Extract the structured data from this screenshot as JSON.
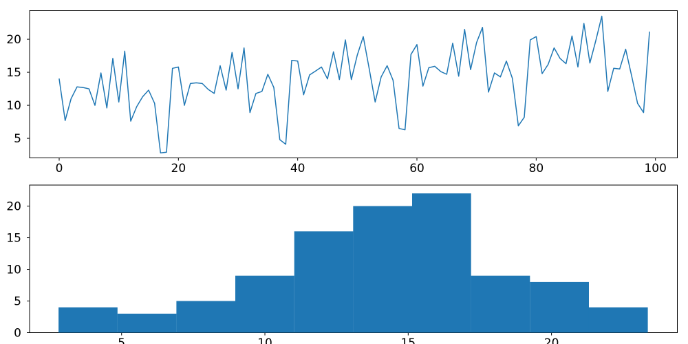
{
  "figure": {
    "background": "#ffffff",
    "series_color": "#1f77b4",
    "axis_color": "#000000",
    "text_color": "#000000"
  },
  "chart_data": [
    {
      "id": "top-line-plot",
      "type": "line",
      "title": "",
      "xlabel": "",
      "ylabel": "",
      "legend_position": "none",
      "grid": false,
      "x_start": 0,
      "x_step": 1,
      "n_points": 100,
      "y": [
        14.0,
        7.7,
        11.0,
        12.8,
        12.7,
        12.5,
        10.0,
        14.9,
        9.6,
        17.1,
        10.5,
        18.2,
        7.6,
        9.8,
        11.3,
        12.3,
        10.3,
        2.8,
        2.9,
        15.6,
        15.8,
        10.0,
        13.3,
        13.4,
        13.3,
        12.4,
        11.8,
        16.0,
        12.3,
        18.0,
        12.5,
        18.7,
        8.9,
        11.8,
        12.1,
        14.7,
        12.7,
        4.8,
        4.1,
        16.8,
        16.7,
        11.6,
        14.6,
        15.2,
        15.8,
        14.0,
        18.1,
        13.9,
        19.9,
        13.9,
        17.6,
        20.4,
        15.5,
        10.5,
        14.3,
        16.0,
        13.8,
        6.5,
        6.3,
        17.7,
        19.2,
        12.9,
        15.7,
        15.9,
        15.1,
        14.7,
        19.4,
        14.4,
        21.5,
        15.4,
        19.5,
        21.8,
        12.0,
        14.9,
        14.3,
        16.7,
        14.1,
        6.9,
        8.2,
        19.9,
        20.4,
        14.8,
        16.2,
        18.7,
        17.1,
        16.3,
        20.5,
        15.8,
        22.4,
        16.4,
        19.8,
        23.5,
        12.1,
        15.6,
        15.5,
        18.5,
        14.5,
        10.3,
        8.9,
        21.1
      ],
      "xlim": [
        -4.96,
        103.67
      ],
      "ylim": [
        2.04,
        24.33
      ],
      "xticks": [
        0,
        20,
        40,
        60,
        80,
        100
      ],
      "yticks": [
        5,
        10,
        15,
        20
      ],
      "line_width": 1.5
    },
    {
      "id": "bottom-histogram",
      "type": "bar",
      "subtype": "histogram",
      "title": "",
      "xlabel": "",
      "ylabel": "",
      "legend_position": "none",
      "grid": false,
      "bin_start": 2.8,
      "bin_width": 2.056,
      "counts": [
        4,
        3,
        5,
        9,
        16,
        20,
        22,
        9,
        8,
        4
      ],
      "xlim": [
        1.79,
        24.39
      ],
      "ylim": [
        0,
        23.32
      ],
      "xticks": [
        5,
        10,
        15,
        20
      ],
      "yticks": [
        0,
        5,
        10,
        15,
        20
      ]
    }
  ]
}
